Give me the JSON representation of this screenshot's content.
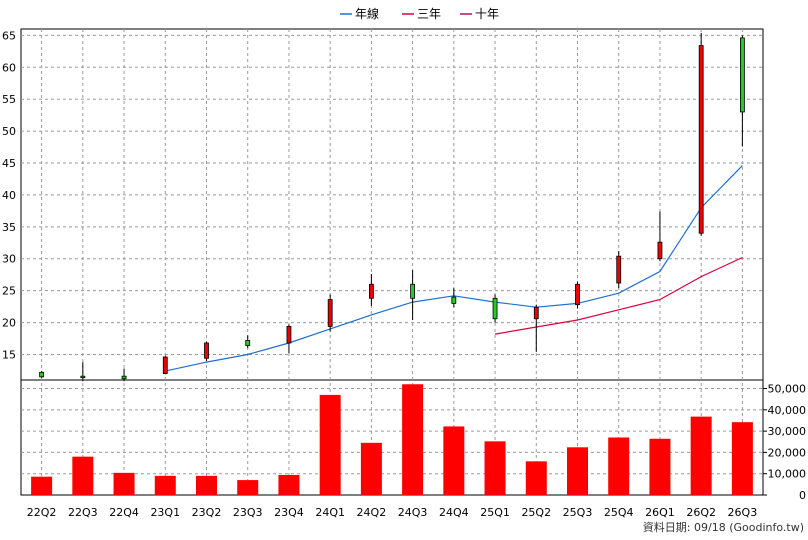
{
  "chart_data": {
    "type": "candlestick",
    "legend": [
      {
        "name": "年線",
        "color": "#1f6fd1"
      },
      {
        "name": "三年",
        "color": "#e0003a"
      },
      {
        "name": "十年",
        "color": "#b0106a"
      }
    ],
    "categories": [
      "22Q2",
      "22Q3",
      "22Q4",
      "23Q1",
      "23Q2",
      "23Q3",
      "23Q4",
      "24Q1",
      "24Q2",
      "24Q3",
      "24Q4",
      "25Q1",
      "25Q2",
      "25Q3",
      "25Q4",
      "26Q1",
      "26Q2",
      "26Q3"
    ],
    "price_axis": {
      "ylim": [
        11,
        66
      ],
      "ticks": [
        15,
        20,
        25,
        30,
        35,
        40,
        45,
        50,
        55,
        60,
        65
      ]
    },
    "volume_axis": {
      "ylim": [
        0,
        54000
      ],
      "ticks": [
        0,
        10000,
        20000,
        30000,
        40000,
        50000
      ],
      "tick_labels": [
        "0",
        "10,000",
        "20,000",
        "30,000",
        "40,000",
        "50,000"
      ]
    },
    "candles": [
      {
        "open": 12.2,
        "close": 11.5,
        "high": 12.4,
        "low": 11.3,
        "color": "#22cc22"
      },
      {
        "open": 11.6,
        "close": 11.4,
        "high": 13.8,
        "low": 10.8,
        "color": "#22cc22"
      },
      {
        "open": 11.6,
        "close": 11.2,
        "high": 12.8,
        "low": 10.8,
        "color": "#22cc22"
      },
      {
        "open": 12.0,
        "close": 14.6,
        "high": 14.8,
        "low": 11.9,
        "color": "#ee0000"
      },
      {
        "open": 14.4,
        "close": 16.8,
        "high": 17.0,
        "low": 14.0,
        "color": "#ee0000"
      },
      {
        "open": 17.2,
        "close": 16.4,
        "high": 18.0,
        "low": 16.0,
        "color": "#22cc22"
      },
      {
        "open": 16.8,
        "close": 19.4,
        "high": 19.7,
        "low": 15.2,
        "color": "#ee0000"
      },
      {
        "open": 19.4,
        "close": 23.6,
        "high": 24.4,
        "low": 18.6,
        "color": "#ee0000"
      },
      {
        "open": 23.8,
        "close": 26.0,
        "high": 27.6,
        "low": 22.6,
        "color": "#ee0000"
      },
      {
        "open": 26.0,
        "close": 23.8,
        "high": 28.2,
        "low": 20.4,
        "color": "#22cc22"
      },
      {
        "open": 24.0,
        "close": 23.0,
        "high": 25.4,
        "low": 22.4,
        "color": "#22cc22"
      },
      {
        "open": 23.8,
        "close": 20.6,
        "high": 24.4,
        "low": 20.0,
        "color": "#22cc22"
      },
      {
        "open": 20.6,
        "close": 22.4,
        "high": 22.8,
        "low": 15.4,
        "color": "#ee0000"
      },
      {
        "open": 22.8,
        "close": 26.0,
        "high": 26.4,
        "low": 22.2,
        "color": "#ee0000"
      },
      {
        "open": 26.2,
        "close": 30.4,
        "high": 31.2,
        "low": 25.4,
        "color": "#ee0000"
      },
      {
        "open": 30.0,
        "close": 32.6,
        "high": 37.4,
        "low": 29.6,
        "color": "#ee0000"
      },
      {
        "open": 34.0,
        "close": 63.4,
        "high": 65.4,
        "low": 33.6,
        "color": "#ee0000"
      },
      {
        "open": 64.6,
        "close": 53.0,
        "high": 65.0,
        "low": 47.6,
        "color": "#22cc22"
      }
    ],
    "lines": [
      {
        "name": "年線",
        "color": "#1f6fd1",
        "start": 3,
        "values": [
          12.4,
          13.8,
          15.0,
          16.8,
          19.0,
          21.2,
          23.2,
          24.2,
          23.2,
          22.4,
          23.0,
          24.6,
          28.0,
          38.0,
          44.6
        ]
      },
      {
        "name": "三年",
        "color": "#e0003a",
        "start": 11,
        "values": [
          18.2,
          19.3,
          20.4,
          22.0,
          23.6,
          27.2,
          30.2
        ]
      }
    ],
    "volume": {
      "color": "#ff0000",
      "values": [
        8600,
        18000,
        10400,
        9000,
        9000,
        7000,
        9400,
        47000,
        24500,
        52000,
        32200,
        25200,
        15800,
        22400,
        27000,
        26400,
        36800,
        34200
      ]
    },
    "source": "資料日期: 09/18 (Goodinfo.tw)"
  }
}
